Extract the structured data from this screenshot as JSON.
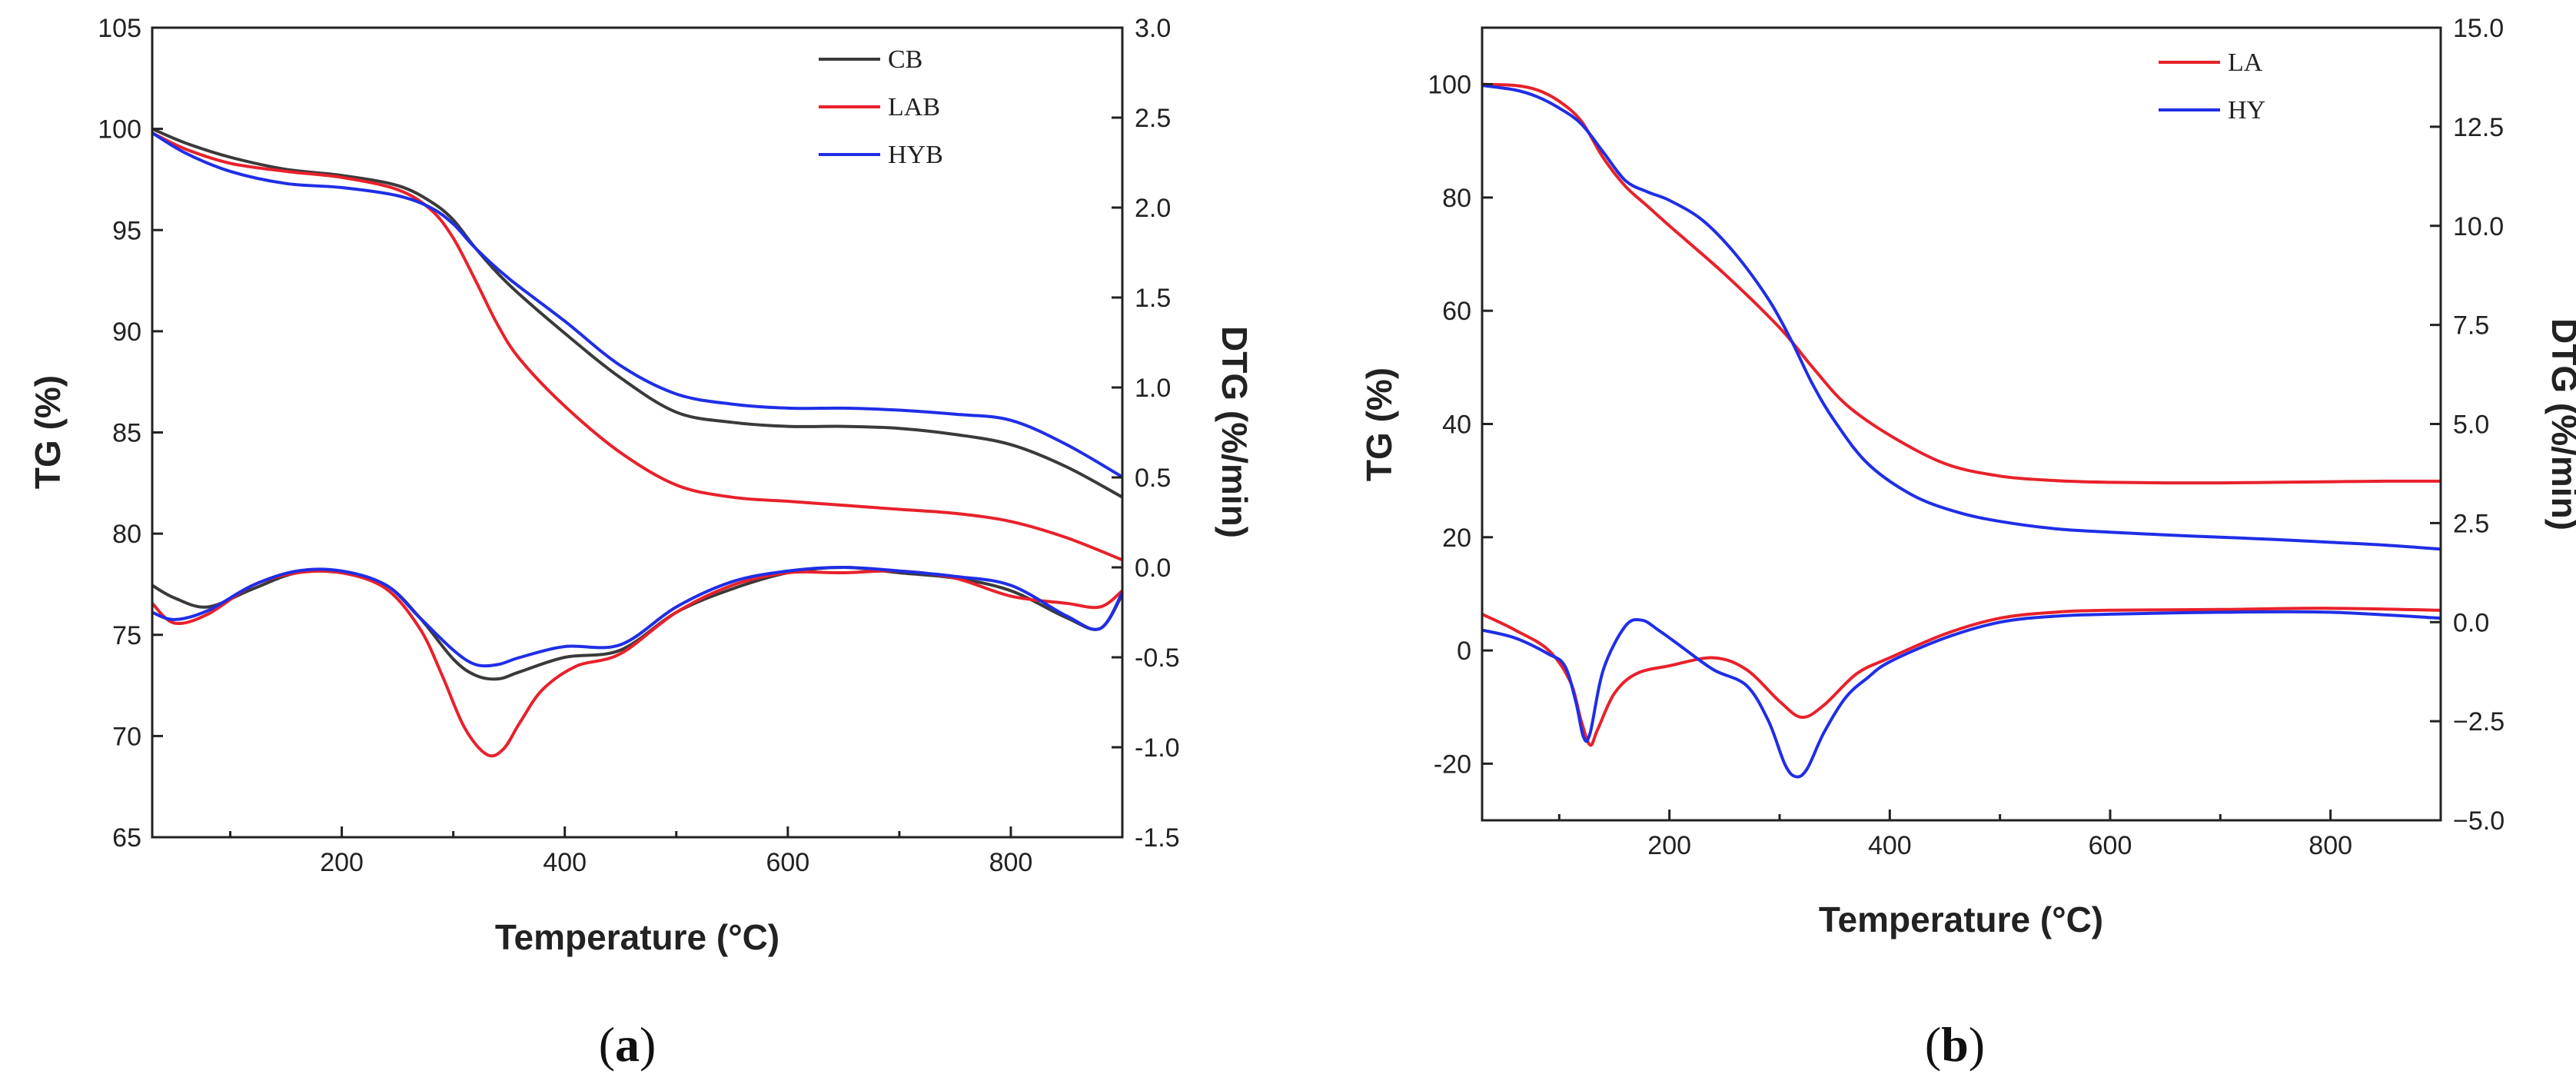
{
  "panels": [
    {
      "label_open": "(",
      "label_letter": "a",
      "label_close": ")"
    },
    {
      "label_open": "(",
      "label_letter": "b",
      "label_close": ")"
    }
  ],
  "chart_data": [
    {
      "type": "line",
      "panel": "a",
      "xlabel": "Temperature (°C)",
      "ylabel": "TG (%)",
      "y2label": "DTG (%/min)",
      "xlim": [
        30,
        900
      ],
      "ylim": [
        65,
        105
      ],
      "y2lim": [
        -1.5,
        3.0
      ],
      "xticks": [
        200,
        400,
        600,
        800
      ],
      "yticks": [
        65,
        70,
        75,
        80,
        85,
        90,
        95,
        100,
        105
      ],
      "y2ticks": [
        -1.5,
        -1.0,
        -0.5,
        0.0,
        0.5,
        1.0,
        1.5,
        2.0,
        2.5,
        3.0
      ],
      "y2ticklabels": [
        "-1.5",
        "-1.0",
        "-0.5",
        "0.0",
        "0.5",
        "1.0",
        "1.5",
        "2.0",
        "2.5",
        "3.0"
      ],
      "legend_position": "top-right",
      "legend": [
        "CB",
        "LAB",
        "HYB"
      ],
      "series": [
        {
          "name": "CB",
          "color": "#3a3a3a",
          "kind": "TG",
          "axis": "left",
          "x": [
            30,
            60,
            100,
            150,
            200,
            250,
            280,
            300,
            320,
            350,
            400,
            450,
            500,
            550,
            600,
            650,
            700,
            750,
            800,
            850,
            900
          ],
          "y": [
            100,
            99.3,
            98.6,
            98.0,
            97.7,
            97.2,
            96.4,
            95.5,
            94.1,
            92.3,
            89.9,
            87.7,
            86.0,
            85.5,
            85.3,
            85.3,
            85.2,
            84.9,
            84.4,
            83.3,
            81.8
          ]
        },
        {
          "name": "LAB",
          "color": "#e8212b",
          "kind": "TG",
          "axis": "left",
          "x": [
            30,
            60,
            100,
            150,
            200,
            250,
            280,
            300,
            320,
            340,
            360,
            400,
            450,
            500,
            550,
            600,
            650,
            700,
            750,
            800,
            850,
            900
          ],
          "y": [
            99.8,
            99.0,
            98.3,
            97.9,
            97.6,
            97.0,
            96.0,
            94.6,
            92.5,
            90.3,
            88.6,
            86.3,
            84.0,
            82.4,
            81.8,
            81.6,
            81.4,
            81.2,
            81.0,
            80.6,
            79.8,
            78.7
          ]
        },
        {
          "name": "HYB",
          "color": "#1f2ee6",
          "kind": "TG",
          "axis": "left",
          "x": [
            30,
            60,
            100,
            150,
            200,
            250,
            280,
            300,
            320,
            350,
            400,
            450,
            500,
            550,
            600,
            650,
            700,
            750,
            800,
            850,
            900
          ],
          "y": [
            99.8,
            98.8,
            97.9,
            97.3,
            97.1,
            96.7,
            96.1,
            95.3,
            94.1,
            92.6,
            90.5,
            88.3,
            86.9,
            86.4,
            86.2,
            86.2,
            86.1,
            85.9,
            85.6,
            84.4,
            82.8
          ]
        },
        {
          "name": "CB",
          "color": "#3a3a3a",
          "kind": "DTG",
          "axis": "right",
          "x": [
            30,
            50,
            80,
            120,
            160,
            200,
            240,
            270,
            300,
            320,
            340,
            360,
            400,
            450,
            500,
            550,
            600,
            650,
            700,
            750,
            800,
            850,
            880,
            900
          ],
          "y": [
            -0.1,
            -0.17,
            -0.22,
            -0.12,
            -0.03,
            -0.03,
            -0.1,
            -0.28,
            -0.51,
            -0.6,
            -0.62,
            -0.58,
            -0.5,
            -0.46,
            -0.25,
            -0.12,
            -0.03,
            0.0,
            -0.03,
            -0.06,
            -0.13,
            -0.28,
            -0.34,
            -0.15
          ]
        },
        {
          "name": "LAB",
          "color": "#e8212b",
          "kind": "DTG",
          "axis": "right",
          "x": [
            30,
            50,
            80,
            120,
            160,
            200,
            240,
            270,
            290,
            310,
            330,
            345,
            360,
            380,
            410,
            450,
            500,
            550,
            600,
            650,
            700,
            750,
            800,
            850,
            880,
            900
          ],
          "y": [
            -0.2,
            -0.31,
            -0.26,
            -0.1,
            -0.03,
            -0.03,
            -0.12,
            -0.34,
            -0.6,
            -0.89,
            -1.04,
            -1.01,
            -0.86,
            -0.68,
            -0.55,
            -0.48,
            -0.25,
            -0.1,
            -0.03,
            -0.03,
            -0.02,
            -0.06,
            -0.16,
            -0.2,
            -0.22,
            -0.13
          ]
        },
        {
          "name": "HYB",
          "color": "#1f2ee6",
          "kind": "DTG",
          "axis": "right",
          "x": [
            30,
            50,
            80,
            120,
            160,
            200,
            240,
            270,
            300,
            320,
            340,
            360,
            400,
            450,
            500,
            550,
            600,
            650,
            700,
            750,
            800,
            850,
            880,
            900
          ],
          "y": [
            -0.25,
            -0.29,
            -0.24,
            -0.1,
            -0.02,
            -0.02,
            -0.1,
            -0.28,
            -0.46,
            -0.54,
            -0.54,
            -0.5,
            -0.44,
            -0.43,
            -0.22,
            -0.08,
            -0.02,
            0.0,
            -0.02,
            -0.05,
            -0.1,
            -0.27,
            -0.34,
            -0.14
          ]
        }
      ]
    },
    {
      "type": "line",
      "panel": "b",
      "xlabel": "Temperature (°C)",
      "ylabel": "TG (%)",
      "y2label": "DTG (%/min)",
      "xlim": [
        30,
        900
      ],
      "ylim": [
        -30,
        110
      ],
      "y2lim": [
        -5.0,
        15.0
      ],
      "xticks": [
        200,
        400,
        600,
        800
      ],
      "yticks": [
        -20,
        0,
        20,
        40,
        60,
        80,
        100
      ],
      "y2ticks": [
        -5.0,
        -2.5,
        0.0,
        2.5,
        5.0,
        7.5,
        10.0,
        12.5,
        15.0
      ],
      "y2ticklabels": [
        "−5.0",
        "−2.5",
        "0.0",
        "2.5",
        "5.0",
        "7.5",
        "10.0",
        "12.5",
        "15.0"
      ],
      "legend_position": "top-right",
      "legend": [
        "LA",
        "HY"
      ],
      "series": [
        {
          "name": "LA",
          "color": "#e8212b",
          "kind": "TG",
          "axis": "left",
          "x": [
            30,
            60,
            80,
            100,
            120,
            140,
            160,
            180,
            200,
            250,
            300,
            330,
            360,
            400,
            450,
            500,
            550,
            600,
            650,
            700,
            750,
            800,
            850,
            900
          ],
          "y": [
            100,
            99.8,
            99.0,
            97.0,
            93.5,
            87.0,
            82.0,
            78.5,
            75.0,
            66.5,
            57.0,
            50.0,
            43.5,
            38.0,
            33.0,
            30.8,
            30.0,
            29.7,
            29.6,
            29.6,
            29.7,
            29.8,
            29.9,
            29.9
          ]
        },
        {
          "name": "HY",
          "color": "#1f2ee6",
          "kind": "TG",
          "axis": "left",
          "x": [
            30,
            60,
            80,
            100,
            120,
            140,
            160,
            180,
            200,
            230,
            260,
            290,
            310,
            330,
            350,
            380,
            420,
            460,
            500,
            550,
            600,
            650,
            700,
            750,
            800,
            850,
            900
          ],
          "y": [
            99.8,
            99.0,
            97.8,
            95.8,
            93.0,
            88.0,
            83.0,
            81.0,
            79.5,
            76.0,
            70.0,
            62.0,
            55.0,
            47.0,
            40.5,
            33.0,
            27.5,
            24.5,
            22.8,
            21.5,
            20.9,
            20.4,
            20.0,
            19.6,
            19.1,
            18.6,
            17.9
          ]
        },
        {
          "name": "LA",
          "color": "#e8212b",
          "kind": "DTG",
          "axis": "right",
          "x": [
            30,
            60,
            90,
            110,
            120,
            128,
            135,
            150,
            170,
            200,
            240,
            270,
            300,
            320,
            340,
            370,
            400,
            450,
            500,
            550,
            600,
            700,
            800,
            900
          ],
          "y": [
            0.2,
            -0.2,
            -0.7,
            -1.5,
            -2.5,
            -3.1,
            -2.7,
            -1.8,
            -1.3,
            -1.1,
            -0.9,
            -1.2,
            -2.0,
            -2.4,
            -2.1,
            -1.3,
            -0.9,
            -0.3,
            0.1,
            0.25,
            0.3,
            0.32,
            0.35,
            0.3
          ]
        },
        {
          "name": "HY",
          "color": "#1f2ee6",
          "kind": "DTG",
          "axis": "right",
          "x": [
            30,
            60,
            90,
            105,
            115,
            122,
            128,
            140,
            160,
            175,
            190,
            210,
            240,
            270,
            290,
            305,
            315,
            325,
            340,
            360,
            380,
            400,
            450,
            500,
            550,
            600,
            700,
            800,
            900
          ],
          "y": [
            -0.2,
            -0.4,
            -0.8,
            -1.1,
            -2.0,
            -2.9,
            -2.8,
            -1.2,
            -0.1,
            0.05,
            -0.2,
            -0.6,
            -1.2,
            -1.6,
            -2.5,
            -3.6,
            -3.9,
            -3.7,
            -2.8,
            -1.9,
            -1.4,
            -1.0,
            -0.4,
            0.0,
            0.15,
            0.2,
            0.25,
            0.25,
            0.1
          ]
        }
      ]
    }
  ]
}
